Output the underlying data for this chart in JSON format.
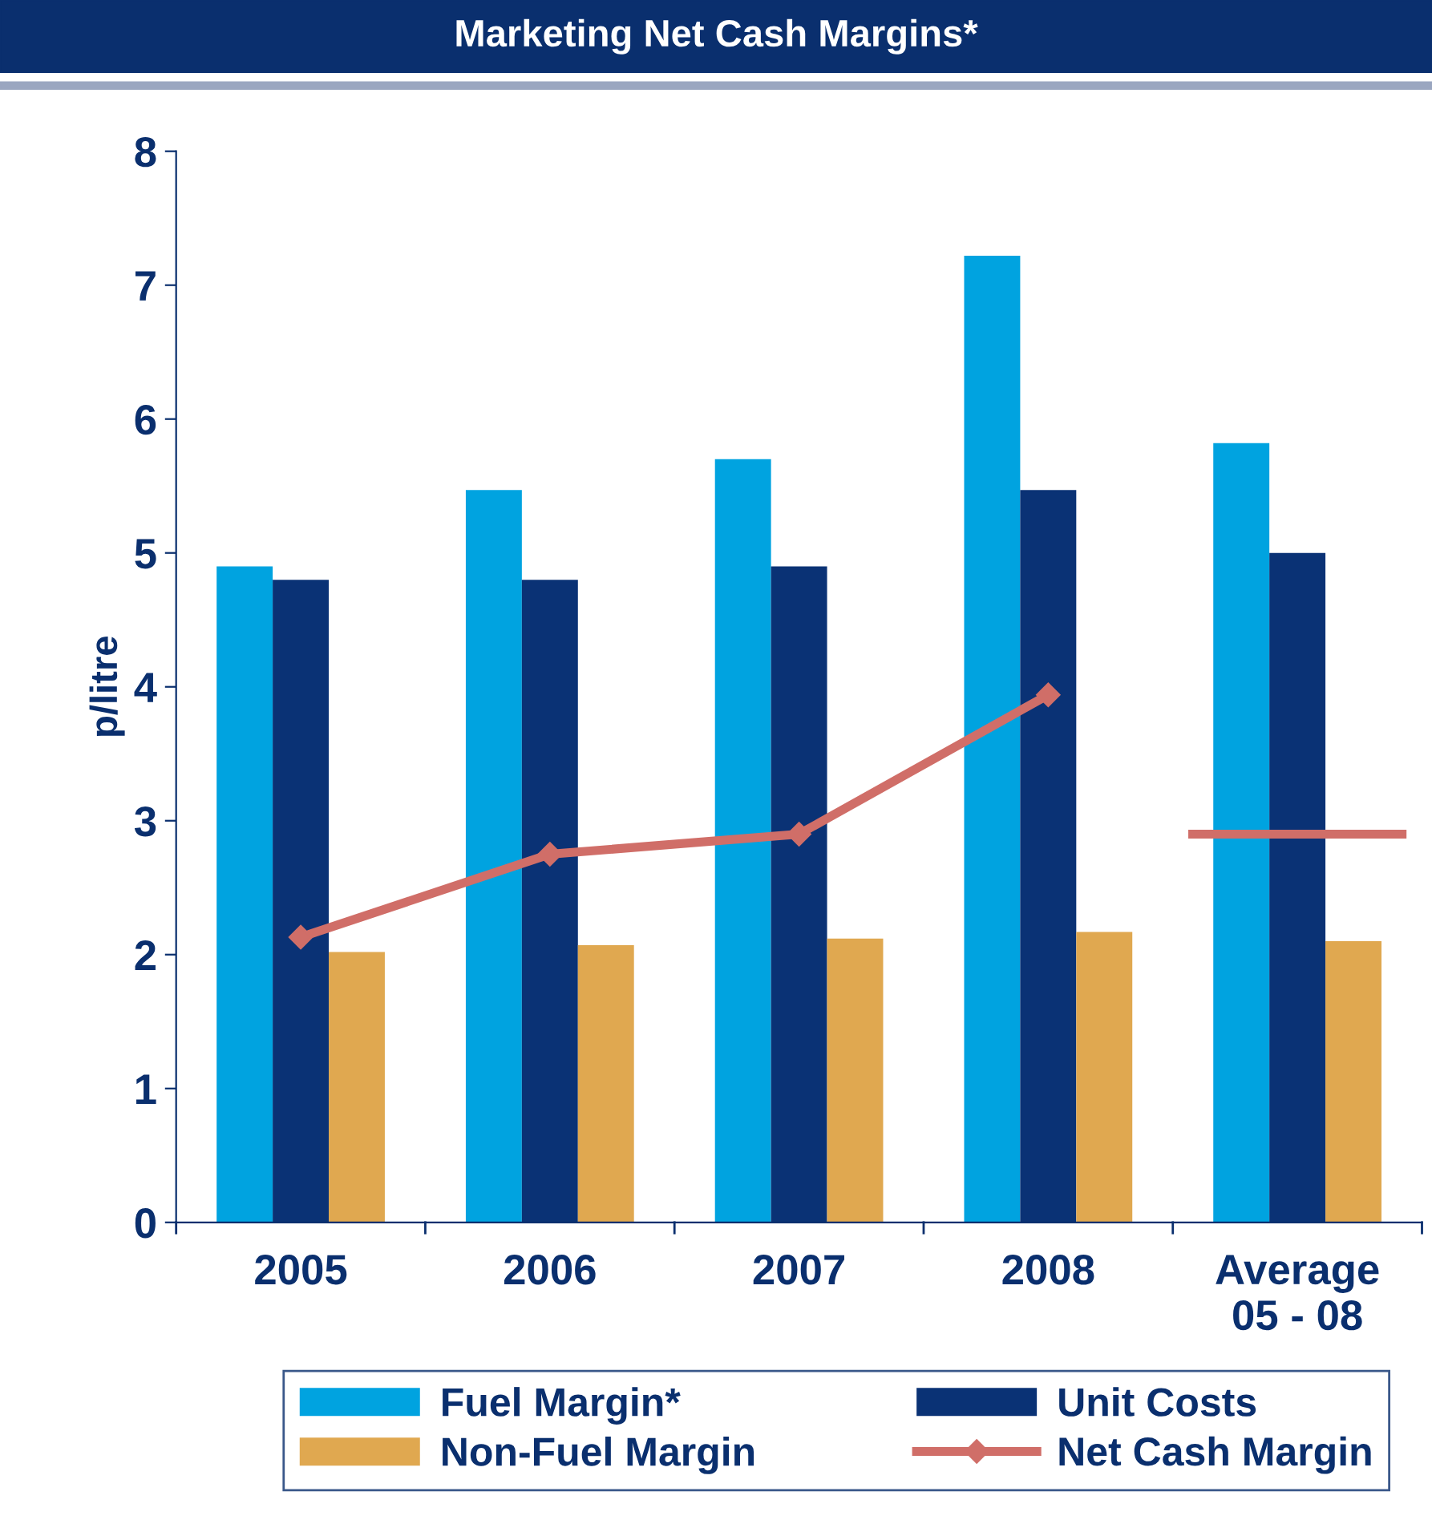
{
  "chart_data": {
    "type": "bar",
    "title": "Marketing Net Cash Margins*",
    "ylabel": "p/litre",
    "categories": [
      "2005",
      "2006",
      "2007",
      "2008",
      "Average\n05 - 08"
    ],
    "series": [
      {
        "name": "Fuel Margin*",
        "color": "#00a3e0",
        "values": [
          4.9,
          5.47,
          5.7,
          7.22,
          5.82
        ]
      },
      {
        "name": "Unit Costs",
        "color": "#0a3275",
        "values": [
          4.8,
          4.8,
          4.9,
          5.47,
          5.0
        ]
      },
      {
        "name": "Non-Fuel Margin",
        "color": "#e0a850",
        "values": [
          2.02,
          2.07,
          2.12,
          2.17,
          2.1
        ]
      },
      {
        "name": "Net Cash Margin",
        "type": "line",
        "color": "#d06e68",
        "marker": "diamond",
        "values": [
          2.13,
          2.75,
          2.9,
          3.94,
          null
        ]
      }
    ],
    "ref_lines": [
      {
        "axis": "y",
        "value": 2.9,
        "color": "#d06e68",
        "line_style": "solid"
      }
    ],
    "ylim": [
      0,
      8
    ],
    "yticks": [
      0,
      1,
      2,
      3,
      4,
      5,
      6,
      7,
      8
    ],
    "grid": false,
    "legend": "bottom"
  }
}
